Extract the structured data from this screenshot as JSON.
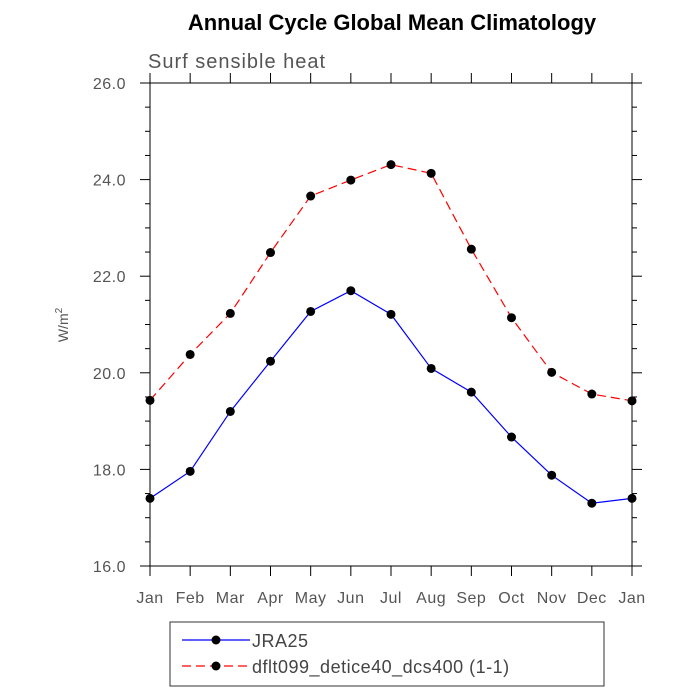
{
  "chart_data": {
    "type": "line",
    "title": "Annual Cycle Global Mean Climatology",
    "subtitle": "Surf sensible heat",
    "ylabel": "W/m",
    "ylabel_sup": "2",
    "xlabel": "",
    "categories": [
      "Jan",
      "Feb",
      "Mar",
      "Apr",
      "May",
      "Jun",
      "Jul",
      "Aug",
      "Sep",
      "Oct",
      "Nov",
      "Dec",
      "Jan"
    ],
    "ylim": [
      16.0,
      26.0
    ],
    "yticks": [
      16.0,
      18.0,
      20.0,
      22.0,
      24.0,
      26.0
    ],
    "ytick_labels": [
      "16.0",
      "18.0",
      "20.0",
      "22.0",
      "24.0",
      "26.0"
    ],
    "series": [
      {
        "name": "JRA25",
        "color": "#0000ff",
        "line_style": "solid",
        "marker": "circle",
        "values": [
          17.4,
          17.96,
          19.2,
          20.24,
          21.27,
          21.7,
          21.21,
          20.09,
          19.6,
          18.67,
          17.88,
          17.3,
          17.4
        ]
      },
      {
        "name": "dflt099_detice40_dcs400 (1-1)",
        "color": "#ff0000",
        "line_style": "dashed",
        "marker": "circle",
        "values": [
          19.43,
          20.38,
          21.23,
          22.49,
          23.66,
          23.99,
          24.31,
          24.13,
          22.56,
          21.14,
          20.01,
          19.56,
          19.42
        ]
      }
    ],
    "legend_position": "bottom"
  }
}
